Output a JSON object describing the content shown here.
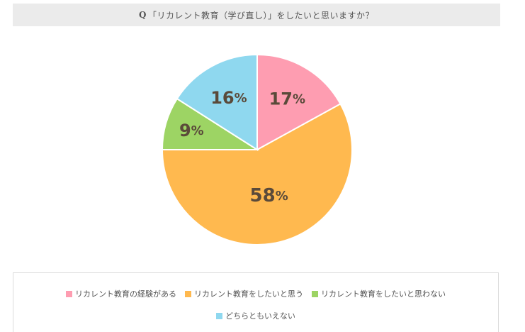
{
  "header": {
    "q_mark": "Q",
    "question": "「リカレント教育（学び直し）」をしたいと思いますか？"
  },
  "chart_data": {
    "type": "pie",
    "title": "「リカレント教育（学び直し）」をしたいと思いますか？",
    "categories": [
      "リカレント教育の経験がある",
      "リカレント教育をしたいと思う",
      "リカレント教育をしたいと思わない",
      "どちらともいえない"
    ],
    "values": [
      17,
      58,
      9,
      16
    ],
    "unit": "%",
    "colors": [
      "#fe9db1",
      "#ffb94f",
      "#9dd464",
      "#8fd8ef"
    ],
    "label_color": "#5a4a3a",
    "legend_position": "bottom"
  }
}
